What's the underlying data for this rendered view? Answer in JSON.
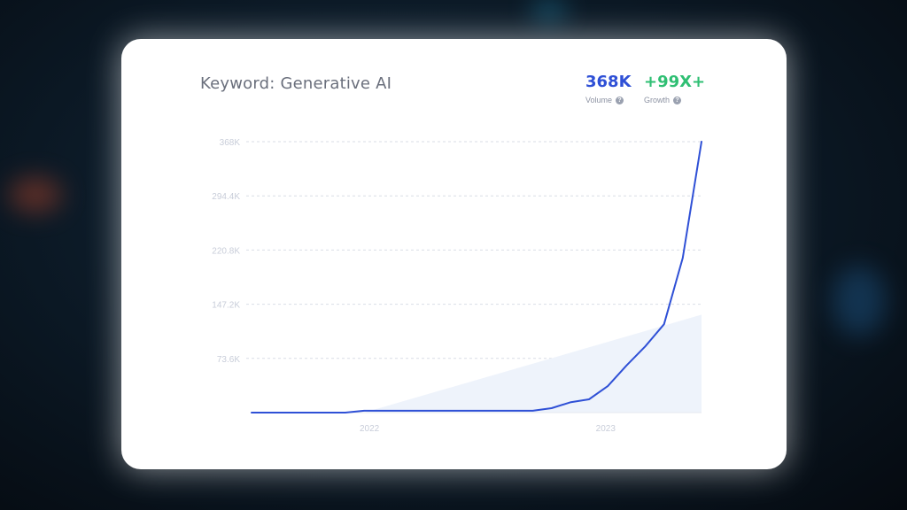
{
  "header": {
    "title": "Keyword: Generative AI",
    "volume_value": "368K",
    "volume_label": "Volume",
    "growth_value": "+99X+",
    "growth_label": "Growth"
  },
  "colors": {
    "line": "#2f50d6",
    "growth": "#2fbf73",
    "area": "#eef3fb",
    "grid": "#d9dde6"
  },
  "chart_data": {
    "type": "line",
    "title": "Keyword: Generative AI",
    "xlabel": "",
    "ylabel": "",
    "x_tick_labels": [
      "2022",
      "2023"
    ],
    "y_tick_labels": [
      "73.6K",
      "147.2K",
      "220.8K",
      "294.4K",
      "368K"
    ],
    "ylim": [
      0,
      368000
    ],
    "grid": "horizontal dashed",
    "series": [
      {
        "values": [
          0,
          0,
          0,
          0,
          0,
          0,
          2500,
          2500,
          2500,
          2500,
          2500,
          2500,
          2500,
          2500,
          2500,
          2500,
          6000,
          14000,
          18000,
          36000,
          64000,
          90000,
          120000,
          210000,
          368000
        ]
      }
    ],
    "trend_area": {
      "start_index": 6,
      "start_value": 0,
      "end_value": 133000
    }
  }
}
